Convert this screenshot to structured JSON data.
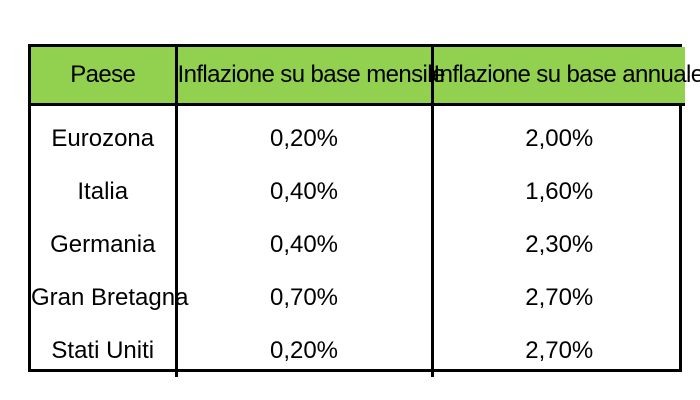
{
  "table": {
    "headers": [
      "Paese",
      "Inflazione su base mensile",
      "Inflazione su base annuale"
    ],
    "rows": [
      [
        "Eurozona",
        "0,20%",
        "2,00%"
      ],
      [
        "Italia",
        "0,40%",
        "1,60%"
      ],
      [
        "Germania",
        "0,40%",
        "2,30%"
      ],
      [
        "Gran Bretagna",
        "0,70%",
        "2,70%"
      ],
      [
        "Stati Uniti",
        "0,20%",
        "2,70%"
      ]
    ]
  },
  "colors": {
    "header_bg": "#92d050",
    "border": "#000000",
    "text": "#000000"
  }
}
